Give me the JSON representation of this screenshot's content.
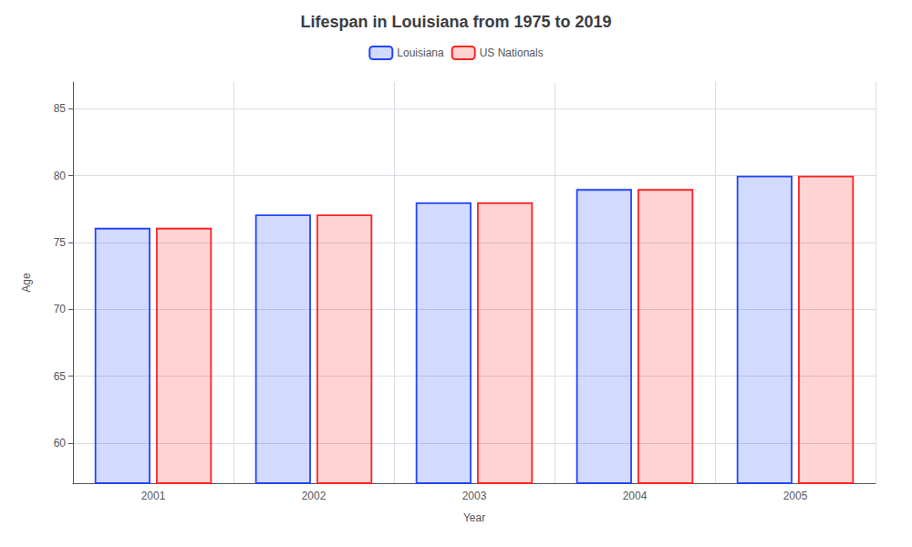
{
  "chart_data": {
    "type": "bar",
    "title": "Lifespan in Louisiana from 1975 to 2019",
    "x_label": "Year",
    "y_label": "Age",
    "categories": [
      "2001",
      "2002",
      "2003",
      "2004",
      "2005"
    ],
    "series": [
      {
        "name": "Louisiana",
        "color": "#2244ff",
        "values": [
          76.1,
          77.1,
          78.0,
          79.0,
          80.0
        ]
      },
      {
        "name": "US Nationals",
        "color": "#ff2222",
        "values": [
          76.1,
          77.1,
          78.0,
          79.0,
          80.0
        ]
      }
    ],
    "ylim": [
      57,
      87
    ],
    "yticks": [
      60,
      65,
      70,
      75,
      80,
      85
    ],
    "grid": true,
    "legend": "top"
  }
}
